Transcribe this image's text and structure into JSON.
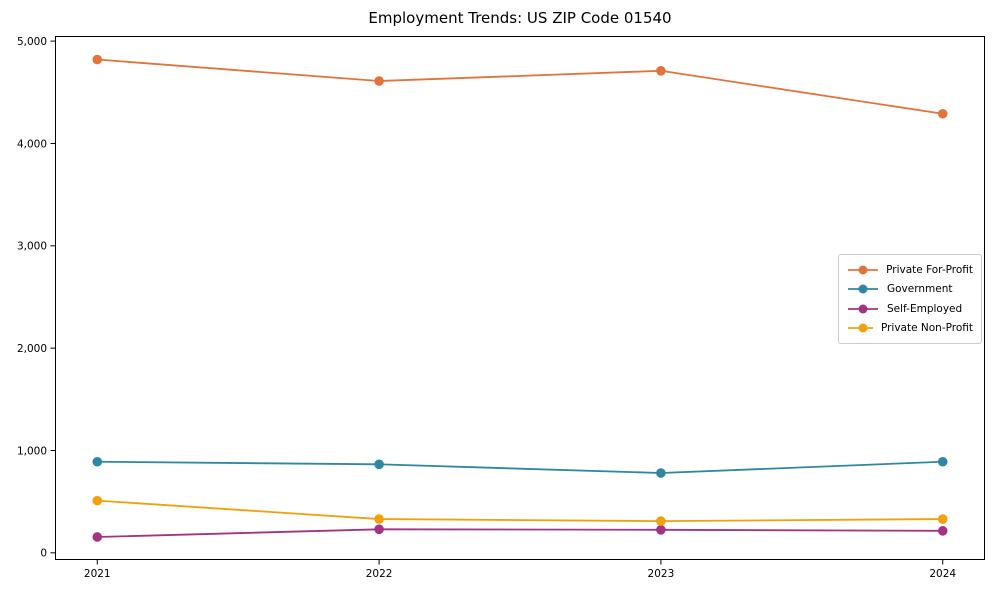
{
  "chart_data": {
    "type": "line",
    "title": "Employment Trends: US ZIP Code 01540",
    "x": [
      2021,
      2022,
      2023,
      2024
    ],
    "x_tick_labels": [
      "2021",
      "2022",
      "2023",
      "2024"
    ],
    "xlim": [
      2020.85,
      2024.15
    ],
    "y_ticks": [
      0,
      1000,
      2000,
      3000,
      4000,
      5000
    ],
    "y_tick_labels": [
      "0",
      "1,000",
      "2,000",
      "3,000",
      "4,000",
      "5,000"
    ],
    "ylim": [
      -70,
      5050
    ],
    "xlabel": "",
    "ylabel": "",
    "grid": false,
    "legend_position": "center right",
    "marker": "circle",
    "series": [
      {
        "name": "Private For-Profit",
        "color": "#e2743b",
        "values": [
          4820,
          4610,
          4710,
          4290
        ]
      },
      {
        "name": "Government",
        "color": "#2e87a3",
        "values": [
          890,
          865,
          780,
          890
        ]
      },
      {
        "name": "Self-Employed",
        "color": "#a33483",
        "values": [
          155,
          230,
          225,
          215
        ]
      },
      {
        "name": "Private Non-Profit",
        "color": "#f2a00b",
        "values": [
          510,
          330,
          310,
          330
        ]
      }
    ]
  }
}
